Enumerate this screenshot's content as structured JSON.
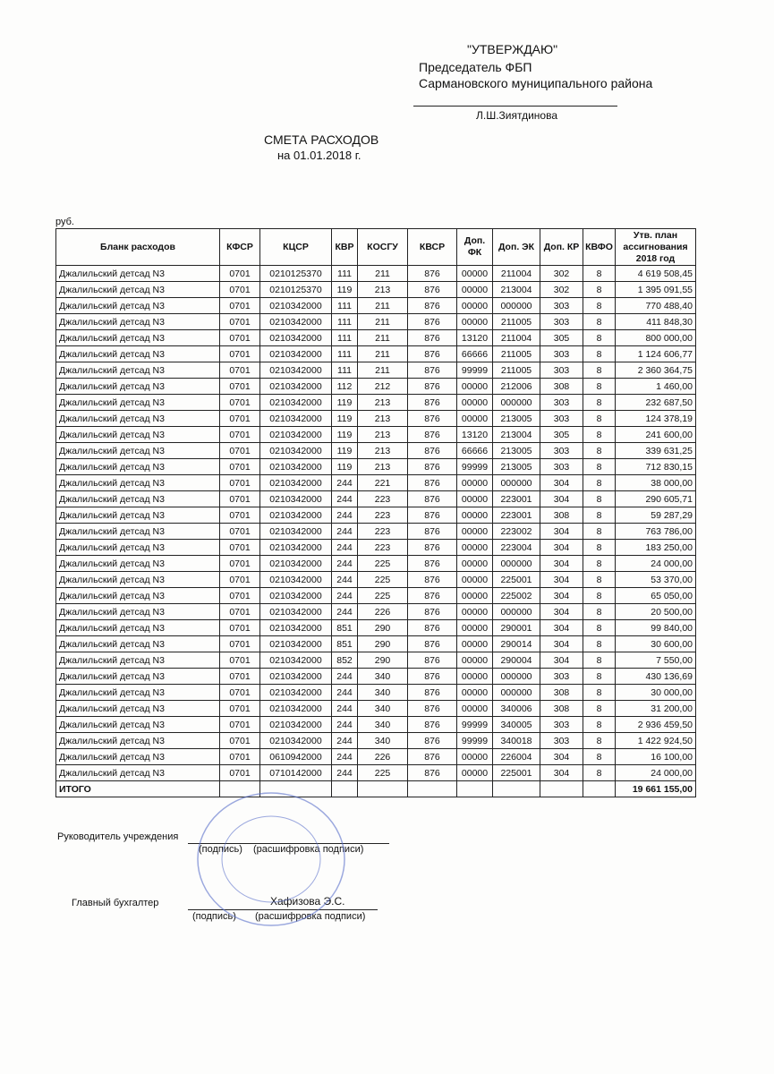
{
  "header": {
    "approve": "\"УТВЕРЖДАЮ\"",
    "position": "Председатель ФБП",
    "district": "Сармановского муниципального района",
    "signer": "Л.Ш.Зиятдинова"
  },
  "title": {
    "main": "СМЕТА РАСХОДОВ",
    "date": "на  01.01.2018 г."
  },
  "unit": "руб.",
  "table": {
    "columns": [
      "Бланк расходов",
      "КФСР",
      "КЦСР",
      "КВР",
      "КОСГУ",
      "КВСР",
      "Доп. ФК",
      "Доп. ЭК",
      "Доп. КР",
      "КВФО",
      "Утв. план ассигнования 2018 год"
    ],
    "rows": [
      [
        "Джалильский детсад N3",
        "0701",
        "0210125370",
        "111",
        "211",
        "876",
        "00000",
        "211004",
        "302",
        "8",
        "4 619 508,45"
      ],
      [
        "Джалильский детсад N3",
        "0701",
        "0210125370",
        "119",
        "213",
        "876",
        "00000",
        "213004",
        "302",
        "8",
        "1 395 091,55"
      ],
      [
        "Джалильский детсад N3",
        "0701",
        "0210342000",
        "111",
        "211",
        "876",
        "00000",
        "000000",
        "303",
        "8",
        "770 488,40"
      ],
      [
        "Джалильский детсад N3",
        "0701",
        "0210342000",
        "111",
        "211",
        "876",
        "00000",
        "211005",
        "303",
        "8",
        "411 848,30"
      ],
      [
        "Джалильский детсад N3",
        "0701",
        "0210342000",
        "111",
        "211",
        "876",
        "13120",
        "211004",
        "305",
        "8",
        "800 000,00"
      ],
      [
        "Джалильский детсад N3",
        "0701",
        "0210342000",
        "111",
        "211",
        "876",
        "66666",
        "211005",
        "303",
        "8",
        "1 124 606,77"
      ],
      [
        "Джалильский детсад N3",
        "0701",
        "0210342000",
        "111",
        "211",
        "876",
        "99999",
        "211005",
        "303",
        "8",
        "2 360 364,75"
      ],
      [
        "Джалильский детсад N3",
        "0701",
        "0210342000",
        "112",
        "212",
        "876",
        "00000",
        "212006",
        "308",
        "8",
        "1 460,00"
      ],
      [
        "Джалильский детсад N3",
        "0701",
        "0210342000",
        "119",
        "213",
        "876",
        "00000",
        "000000",
        "303",
        "8",
        "232 687,50"
      ],
      [
        "Джалильский детсад N3",
        "0701",
        "0210342000",
        "119",
        "213",
        "876",
        "00000",
        "213005",
        "303",
        "8",
        "124 378,19"
      ],
      [
        "Джалильский детсад N3",
        "0701",
        "0210342000",
        "119",
        "213",
        "876",
        "13120",
        "213004",
        "305",
        "8",
        "241 600,00"
      ],
      [
        "Джалильский детсад N3",
        "0701",
        "0210342000",
        "119",
        "213",
        "876",
        "66666",
        "213005",
        "303",
        "8",
        "339 631,25"
      ],
      [
        "Джалильский детсад N3",
        "0701",
        "0210342000",
        "119",
        "213",
        "876",
        "99999",
        "213005",
        "303",
        "8",
        "712 830,15"
      ],
      [
        "Джалильский детсад N3",
        "0701",
        "0210342000",
        "244",
        "221",
        "876",
        "00000",
        "000000",
        "304",
        "8",
        "38 000,00"
      ],
      [
        "Джалильский детсад N3",
        "0701",
        "0210342000",
        "244",
        "223",
        "876",
        "00000",
        "223001",
        "304",
        "8",
        "290 605,71"
      ],
      [
        "Джалильский детсад N3",
        "0701",
        "0210342000",
        "244",
        "223",
        "876",
        "00000",
        "223001",
        "308",
        "8",
        "59 287,29"
      ],
      [
        "Джалильский детсад N3",
        "0701",
        "0210342000",
        "244",
        "223",
        "876",
        "00000",
        "223002",
        "304",
        "8",
        "763 786,00"
      ],
      [
        "Джалильский детсад N3",
        "0701",
        "0210342000",
        "244",
        "223",
        "876",
        "00000",
        "223004",
        "304",
        "8",
        "183 250,00"
      ],
      [
        "Джалильский детсад N3",
        "0701",
        "0210342000",
        "244",
        "225",
        "876",
        "00000",
        "000000",
        "304",
        "8",
        "24 000,00"
      ],
      [
        "Джалильский детсад N3",
        "0701",
        "0210342000",
        "244",
        "225",
        "876",
        "00000",
        "225001",
        "304",
        "8",
        "53 370,00"
      ],
      [
        "Джалильский детсад N3",
        "0701",
        "0210342000",
        "244",
        "225",
        "876",
        "00000",
        "225002",
        "304",
        "8",
        "65 050,00"
      ],
      [
        "Джалильский детсад N3",
        "0701",
        "0210342000",
        "244",
        "226",
        "876",
        "00000",
        "000000",
        "304",
        "8",
        "20 500,00"
      ],
      [
        "Джалильский детсад N3",
        "0701",
        "0210342000",
        "851",
        "290",
        "876",
        "00000",
        "290001",
        "304",
        "8",
        "99 840,00"
      ],
      [
        "Джалильский детсад N3",
        "0701",
        "0210342000",
        "851",
        "290",
        "876",
        "00000",
        "290014",
        "304",
        "8",
        "30 600,00"
      ],
      [
        "Джалильский детсад N3",
        "0701",
        "0210342000",
        "852",
        "290",
        "876",
        "00000",
        "290004",
        "304",
        "8",
        "7 550,00"
      ],
      [
        "Джалильский детсад N3",
        "0701",
        "0210342000",
        "244",
        "340",
        "876",
        "00000",
        "000000",
        "303",
        "8",
        "430 136,69"
      ],
      [
        "Джалильский детсад N3",
        "0701",
        "0210342000",
        "244",
        "340",
        "876",
        "00000",
        "000000",
        "308",
        "8",
        "30 000,00"
      ],
      [
        "Джалильский детсад N3",
        "0701",
        "0210342000",
        "244",
        "340",
        "876",
        "00000",
        "340006",
        "308",
        "8",
        "31 200,00"
      ],
      [
        "Джалильский детсад N3",
        "0701",
        "0210342000",
        "244",
        "340",
        "876",
        "99999",
        "340005",
        "303",
        "8",
        "2 936 459,50"
      ],
      [
        "Джалильский детсад N3",
        "0701",
        "0210342000",
        "244",
        "340",
        "876",
        "99999",
        "340018",
        "303",
        "8",
        "1 422 924,50"
      ],
      [
        "Джалильский детсад N3",
        "0701",
        "0610942000",
        "244",
        "226",
        "876",
        "00000",
        "226004",
        "304",
        "8",
        "16 100,00"
      ],
      [
        "Джалильский детсад N3",
        "0701",
        "0710142000",
        "244",
        "225",
        "876",
        "00000",
        "225001",
        "304",
        "8",
        "24 000,00"
      ]
    ],
    "total": {
      "label": "ИТОГО",
      "value": "19 661 155,00"
    }
  },
  "signatures": {
    "head": {
      "role": "Руководитель учреждения",
      "sign": "(подпись)",
      "decode": "(расшифровка подписи)"
    },
    "accountant": {
      "role": "Главный бухгалтер",
      "name": "Хафизова Э.С.",
      "sign": "(подпись)",
      "decode": "(расшифровка подписи)"
    }
  }
}
